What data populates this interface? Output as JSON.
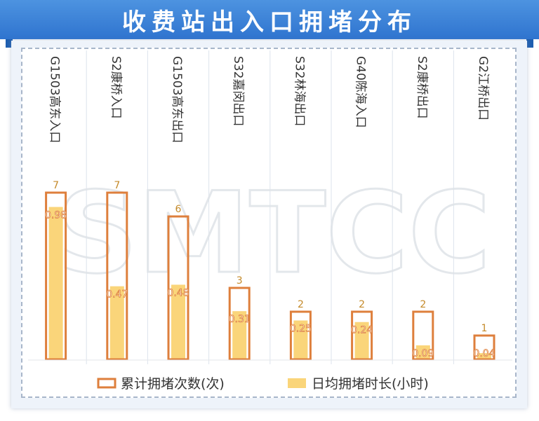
{
  "page_title": "收费站出入口拥堵分布",
  "watermark": "SMTCC",
  "colors": {
    "title_bg": "#3a82d8",
    "outline_bar": "#de7f3c",
    "fill_bar": "#fad57a",
    "count_label": "#c48a2a",
    "duration_label": "#ffffff",
    "category_text": "#333333",
    "divider": "#dde3ec"
  },
  "chart_data": {
    "type": "bar",
    "categories": [
      "G1503高东入口",
      "S2康桥入口",
      "G1503高东出口",
      "S32嘉闵出口",
      "S32林海出口",
      "G40陈海入口",
      "S2康桥出口",
      "G2江桥出口"
    ],
    "series": [
      {
        "name": "累计拥堵次数(次)",
        "values": [
          7,
          7,
          6,
          3,
          2,
          2,
          2,
          1
        ]
      },
      {
        "name": "日均拥堵时长(小时)",
        "values": [
          0.98,
          0.47,
          0.48,
          0.31,
          0.25,
          0.24,
          0.09,
          0.04
        ]
      }
    ],
    "legend": [
      "累计拥堵次数(次)",
      "日均拥堵时长(小时)"
    ],
    "legend_position": "bottom",
    "y_axis_visible": false,
    "grid": false,
    "data_labels": true
  }
}
